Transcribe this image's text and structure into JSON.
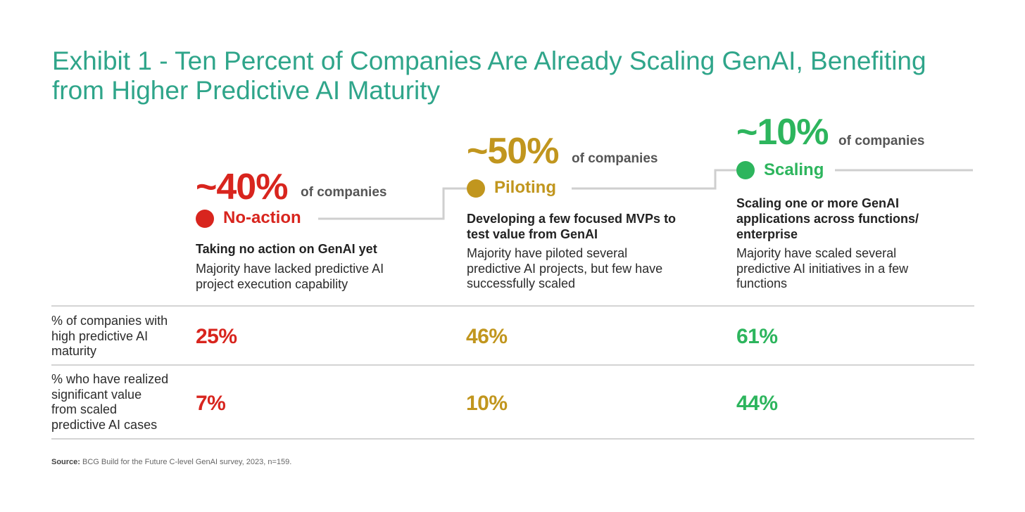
{
  "title": "Exhibit 1 - Ten Percent of Companies Are Already Scaling GenAI, Benefiting from Higher Predictive AI Maturity",
  "colors": {
    "title": "#2fa58a",
    "no_action": "#d8251e",
    "piloting": "#c1961e",
    "scaling": "#2db55d",
    "connector": "#cfcfcf",
    "rule": "#d4d4d4"
  },
  "chart_data": {
    "type": "table",
    "title": "Exhibit 1 - Ten Percent of Companies Are Already Scaling GenAI, Benefiting from Higher Predictive AI Maturity",
    "share_suffix": "of companies",
    "stages": [
      {
        "name": "No-action",
        "share_label": "~40%",
        "share_pct": 40,
        "color": "#d8251e",
        "headline": "Taking no action on GenAI yet",
        "description": "Majority have lacked predictive AI project execution capability"
      },
      {
        "name": "Piloting",
        "share_label": "~50%",
        "share_pct": 50,
        "color": "#c1961e",
        "headline": "Developing a few focused MVPs to test value from GenAI",
        "description": "Majority have piloted several predictive AI projects, but few have successfully scaled"
      },
      {
        "name": "Scaling",
        "share_label": "~10%",
        "share_pct": 10,
        "color": "#2db55d",
        "headline": "Scaling one or more GenAI applications across functions/ enterprise",
        "description": "Majority have scaled several predictive AI initiatives in a few functions"
      }
    ],
    "metrics": [
      {
        "label": "% of companies with high predictive AI maturity",
        "values": [
          "25%",
          "46%",
          "61%"
        ]
      },
      {
        "label": "% who have realized significant value from scaled predictive AI cases",
        "values": [
          "7%",
          "10%",
          "44%"
        ]
      }
    ]
  },
  "source": {
    "label": "Source:",
    "text": "BCG Build for the Future C-level GenAI survey, 2023, n=159."
  }
}
